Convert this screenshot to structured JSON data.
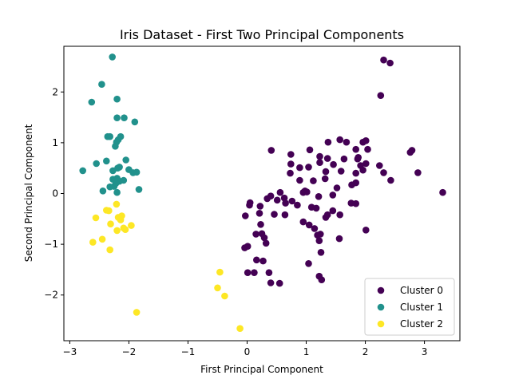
{
  "chart_data": {
    "type": "scatter",
    "title": "Iris Dataset - First Two Principal Components",
    "xlabel": "First Principal Component",
    "ylabel": "Second Principal Component",
    "xlim": [
      -3.1,
      3.6
    ],
    "ylim": [
      -2.9,
      2.9
    ],
    "xticks": [
      -3,
      -2,
      -1,
      0,
      1,
      2,
      3
    ],
    "yticks": [
      -2,
      -1,
      0,
      1,
      2
    ],
    "grid": false,
    "legend_position": "bottom-right",
    "series": [
      {
        "name": "Cluster 0",
        "color": "#440154",
        "points": [
          [
            2.31,
            2.63
          ],
          [
            2.42,
            2.57
          ],
          [
            2.26,
            1.93
          ],
          [
            1.57,
            1.06
          ],
          [
            1.68,
            1.01
          ],
          [
            1.37,
            1.01
          ],
          [
            1.96,
            1.01
          ],
          [
            2.01,
            1.04
          ],
          [
            0.41,
            0.85
          ],
          [
            1.06,
            0.86
          ],
          [
            1.84,
            0.87
          ],
          [
            2.04,
            0.87
          ],
          [
            2.79,
            0.85
          ],
          [
            2.76,
            0.81
          ],
          [
            0.74,
            0.77
          ],
          [
            1.23,
            0.73
          ],
          [
            1.88,
            0.71
          ],
          [
            1.64,
            0.68
          ],
          [
            1.36,
            0.69
          ],
          [
            0.74,
            0.58
          ],
          [
            0.89,
            0.51
          ],
          [
            1.04,
            0.52
          ],
          [
            1.23,
            0.61
          ],
          [
            1.46,
            0.57
          ],
          [
            1.87,
            0.68
          ],
          [
            1.92,
            0.55
          ],
          [
            2.01,
            0.59
          ],
          [
            2.24,
            0.55
          ],
          [
            0.73,
            0.4
          ],
          [
            1.33,
            0.43
          ],
          [
            1.59,
            0.44
          ],
          [
            1.96,
            0.46
          ],
          [
            2.31,
            0.41
          ],
          [
            2.89,
            0.41
          ],
          [
            0.89,
            0.26
          ],
          [
            1.12,
            0.25
          ],
          [
            1.32,
            0.29
          ],
          [
            1.84,
            0.4
          ],
          [
            2.43,
            0.26
          ],
          [
            0.4,
            -0.05
          ],
          [
            0.56,
            0.02
          ],
          [
            0.98,
            0.05
          ],
          [
            1.01,
            0.03
          ],
          [
            1.52,
            0.11
          ],
          [
            1.77,
            0.17
          ],
          [
            1.84,
            0.21
          ],
          [
            0.63,
            -0.09
          ],
          [
            0.95,
            0.02
          ],
          [
            1.21,
            -0.06
          ],
          [
            1.45,
            -0.03
          ],
          [
            3.31,
            0.02
          ],
          [
            -0.03,
            -0.44
          ],
          [
            0.05,
            -0.18
          ],
          [
            0.04,
            -0.23
          ],
          [
            0.22,
            -0.25
          ],
          [
            0.21,
            -0.39
          ],
          [
            0.34,
            -0.1
          ],
          [
            0.51,
            -0.13
          ],
          [
            0.65,
            -0.19
          ],
          [
            0.76,
            -0.15
          ],
          [
            0.85,
            -0.23
          ],
          [
            1.09,
            -0.27
          ],
          [
            1.17,
            -0.29
          ],
          [
            1.36,
            -0.42
          ],
          [
            1.45,
            -0.34
          ],
          [
            1.57,
            -0.42
          ],
          [
            1.76,
            -0.19
          ],
          [
            1.84,
            -0.2
          ],
          [
            0.46,
            -0.41
          ],
          [
            0.64,
            -0.42
          ],
          [
            0.95,
            -0.56
          ],
          [
            1.05,
            -0.62
          ],
          [
            1.14,
            -0.69
          ],
          [
            1.24,
            -0.8
          ],
          [
            1.33,
            -0.47
          ],
          [
            0.23,
            -0.61
          ],
          [
            0.25,
            -0.79
          ],
          [
            0.15,
            -0.8
          ],
          [
            0.29,
            -0.87
          ],
          [
            0.32,
            -0.98
          ],
          [
            -0.04,
            -1.07
          ],
          [
            0.01,
            -1.04
          ],
          [
            1.19,
            -0.82
          ],
          [
            1.22,
            -0.93
          ],
          [
            1.25,
            -1.16
          ],
          [
            1.56,
            -0.89
          ],
          [
            2.01,
            -0.72
          ],
          [
            0.16,
            -1.31
          ],
          [
            0.27,
            -1.33
          ],
          [
            1.04,
            -1.38
          ],
          [
            0.01,
            -1.56
          ],
          [
            0.12,
            -1.56
          ],
          [
            0.37,
            -1.56
          ],
          [
            0.4,
            -1.76
          ],
          [
            0.55,
            -1.77
          ],
          [
            1.22,
            -1.63
          ],
          [
            1.26,
            -1.7
          ]
        ]
      },
      {
        "name": "Cluster 1",
        "color": "#21918c",
        "points": [
          [
            -2.28,
            2.69
          ],
          [
            -2.46,
            2.15
          ],
          [
            -2.63,
            1.8
          ],
          [
            -2.2,
            1.86
          ],
          [
            -2.2,
            1.49
          ],
          [
            -2.08,
            1.49
          ],
          [
            -1.9,
            1.41
          ],
          [
            -2.36,
            1.12
          ],
          [
            -2.32,
            1.12
          ],
          [
            -2.14,
            1.12
          ],
          [
            -2.18,
            1.06
          ],
          [
            -2.21,
            1.01
          ],
          [
            -2.23,
            0.93
          ],
          [
            -2.55,
            0.59
          ],
          [
            -2.38,
            0.64
          ],
          [
            -2.05,
            0.66
          ],
          [
            -2.27,
            0.45
          ],
          [
            -2.19,
            0.5
          ],
          [
            -2.16,
            0.52
          ],
          [
            -2.78,
            0.45
          ],
          [
            -2.0,
            0.47
          ],
          [
            -1.93,
            0.41
          ],
          [
            -1.87,
            0.42
          ],
          [
            -2.27,
            0.28
          ],
          [
            -2.2,
            0.3
          ],
          [
            -2.16,
            0.24
          ],
          [
            -2.09,
            0.26
          ],
          [
            -2.22,
            0.2
          ],
          [
            -2.44,
            0.05
          ],
          [
            -2.32,
            0.13
          ],
          [
            -2.25,
            0.14
          ],
          [
            -2.2,
            0.02
          ],
          [
            -1.83,
            0.08
          ]
        ]
      },
      {
        "name": "Cluster 2",
        "color": "#fde725",
        "points": [
          [
            -2.21,
            -0.21
          ],
          [
            -2.56,
            -0.48
          ],
          [
            -2.38,
            -0.33
          ],
          [
            -2.34,
            -0.34
          ],
          [
            -2.18,
            -0.47
          ],
          [
            -2.12,
            -0.44
          ],
          [
            -2.14,
            -0.52
          ],
          [
            -2.31,
            -0.6
          ],
          [
            -2.2,
            -0.73
          ],
          [
            -2.09,
            -0.68
          ],
          [
            -2.06,
            -0.71
          ],
          [
            -1.96,
            -0.63
          ],
          [
            -2.61,
            -0.96
          ],
          [
            -2.45,
            -0.9
          ],
          [
            -2.32,
            -1.11
          ],
          [
            -0.46,
            -1.55
          ],
          [
            -0.5,
            -1.86
          ],
          [
            -0.38,
            -2.02
          ],
          [
            -1.87,
            -2.34
          ],
          [
            -0.12,
            -2.66
          ]
        ]
      }
    ]
  }
}
